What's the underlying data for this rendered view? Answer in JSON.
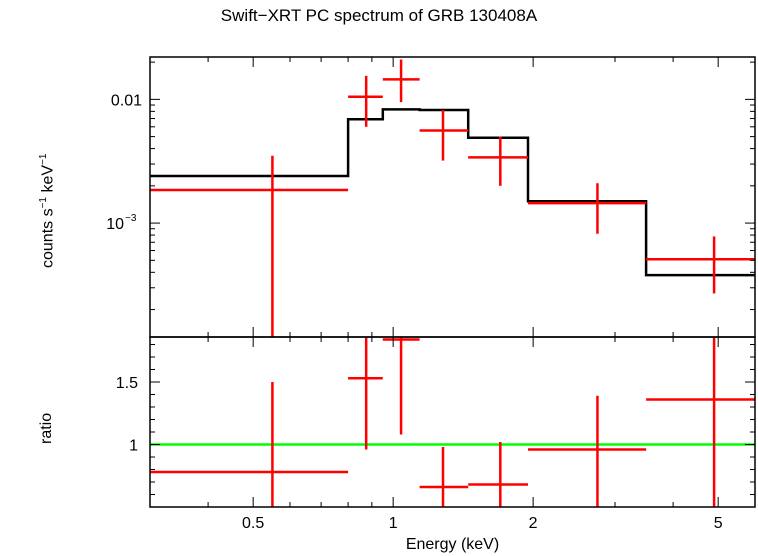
{
  "chart_data": [
    {
      "type": "line",
      "panel": "top",
      "title": "Swift−XRT PC spectrum of GRB 130408A",
      "ylabel_parts": [
        "counts s",
        "−1",
        " keV",
        "−1"
      ],
      "xscale": "log",
      "yscale": "log",
      "xlim": [
        0.3,
        6.0
      ],
      "ylim": [
        0.00012,
        0.022
      ],
      "yticks": [
        {
          "value": 0.01,
          "label": "0.01"
        },
        {
          "value": 0.001,
          "label": "10",
          "exp": "−3"
        }
      ],
      "series": [
        {
          "kind": "data",
          "color": "#ff0000",
          "points": [
            {
              "x": 0.55,
              "xlo": 0.3,
              "xhi": 0.8,
              "y": 0.00185,
              "ylo": 0.0001,
              "yhi": 0.0035
            },
            {
              "x": 0.875,
              "xlo": 0.8,
              "xhi": 0.95,
              "y": 0.0105,
              "ylo": 0.006,
              "yhi": 0.0155
            },
            {
              "x": 1.04,
              "xlo": 0.95,
              "xhi": 1.14,
              "y": 0.0145,
              "ylo": 0.0095,
              "yhi": 0.021
            },
            {
              "x": 1.28,
              "xlo": 1.14,
              "xhi": 1.45,
              "y": 0.0056,
              "ylo": 0.0032,
              "yhi": 0.0082
            },
            {
              "x": 1.7,
              "xlo": 1.45,
              "xhi": 1.95,
              "y": 0.0034,
              "ylo": 0.002,
              "yhi": 0.005
            },
            {
              "x": 2.75,
              "xlo": 1.95,
              "xhi": 3.5,
              "y": 0.00145,
              "ylo": 0.00082,
              "yhi": 0.0021
            },
            {
              "x": 4.9,
              "xlo": 3.5,
              "xhi": 6.0,
              "y": 0.00051,
              "ylo": 0.00027,
              "yhi": 0.00078
            }
          ]
        },
        {
          "kind": "model",
          "color": "#000000",
          "steps": [
            {
              "xlo": 0.3,
              "xhi": 0.8,
              "y": 0.0024
            },
            {
              "xlo": 0.8,
              "xhi": 0.95,
              "y": 0.0069
            },
            {
              "xlo": 0.95,
              "xhi": 1.14,
              "y": 0.0083
            },
            {
              "xlo": 1.14,
              "xhi": 1.45,
              "y": 0.0082
            },
            {
              "xlo": 1.45,
              "xhi": 1.95,
              "y": 0.0049
            },
            {
              "xlo": 1.95,
              "xhi": 3.5,
              "y": 0.0015
            },
            {
              "xlo": 3.5,
              "xhi": 6.0,
              "y": 0.00038
            }
          ]
        }
      ]
    },
    {
      "type": "line",
      "panel": "bottom",
      "ylabel": "ratio",
      "xlabel": "Energy (keV)",
      "xscale": "log",
      "xlim": [
        0.3,
        6.0
      ],
      "ylim": [
        0.5,
        1.86
      ],
      "yticks": [
        {
          "value": 1,
          "label": "1"
        },
        {
          "value": 1.5,
          "label": "1.5"
        }
      ],
      "xticks": [
        {
          "value": 0.5,
          "label": "0.5"
        },
        {
          "value": 1,
          "label": "1"
        },
        {
          "value": 2,
          "label": "2"
        },
        {
          "value": 5,
          "label": "5"
        }
      ],
      "reference_line": {
        "y": 1,
        "color": "#00ff00"
      },
      "series": [
        {
          "kind": "data",
          "color": "#ff0000",
          "points": [
            {
              "x": 0.55,
              "xlo": 0.3,
              "xhi": 0.8,
              "y": 0.78,
              "ylo": 0.5,
              "yhi": 1.5
            },
            {
              "x": 0.875,
              "xlo": 0.8,
              "xhi": 0.95,
              "y": 1.53,
              "ylo": 0.96,
              "yhi": 1.86
            },
            {
              "x": 1.04,
              "xlo": 0.95,
              "xhi": 1.14,
              "y": 1.84,
              "ylo": 1.08,
              "yhi": 1.86
            },
            {
              "x": 1.28,
              "xlo": 1.14,
              "xhi": 1.45,
              "y": 0.66,
              "ylo": 0.5,
              "yhi": 0.98
            },
            {
              "x": 1.7,
              "xlo": 1.45,
              "xhi": 1.95,
              "y": 0.68,
              "ylo": 0.5,
              "yhi": 1.02
            },
            {
              "x": 2.75,
              "xlo": 1.95,
              "xhi": 3.5,
              "y": 0.96,
              "ylo": 0.5,
              "yhi": 1.39
            },
            {
              "x": 4.9,
              "xlo": 3.5,
              "xhi": 6.0,
              "y": 1.36,
              "ylo": 0.5,
              "yhi": 1.86
            }
          ]
        }
      ]
    }
  ]
}
